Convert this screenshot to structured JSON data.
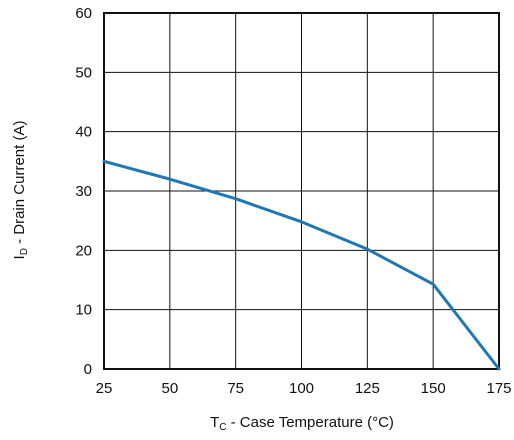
{
  "chart_data": {
    "type": "line",
    "title": "",
    "xlabel_main": "T",
    "xlabel_sub": "C",
    "xlabel_rest": " - Case Temperature (°C)",
    "ylabel_main": "I",
    "ylabel_sub": "D",
    "ylabel_rest": " - Drain Current (A)",
    "xlim": [
      25,
      175
    ],
    "ylim": [
      0,
      60
    ],
    "x_ticks": [
      25,
      50,
      75,
      100,
      125,
      150,
      175
    ],
    "y_ticks": [
      0,
      10,
      20,
      30,
      40,
      50,
      60
    ],
    "grid": true,
    "legend": "none",
    "line_color": "#1f77b4",
    "series": [
      {
        "x": [
          25,
          50,
          75,
          100,
          125,
          150,
          175
        ],
        "y": [
          35,
          32,
          28.7,
          24.8,
          20.2,
          14.3,
          0
        ]
      }
    ]
  }
}
